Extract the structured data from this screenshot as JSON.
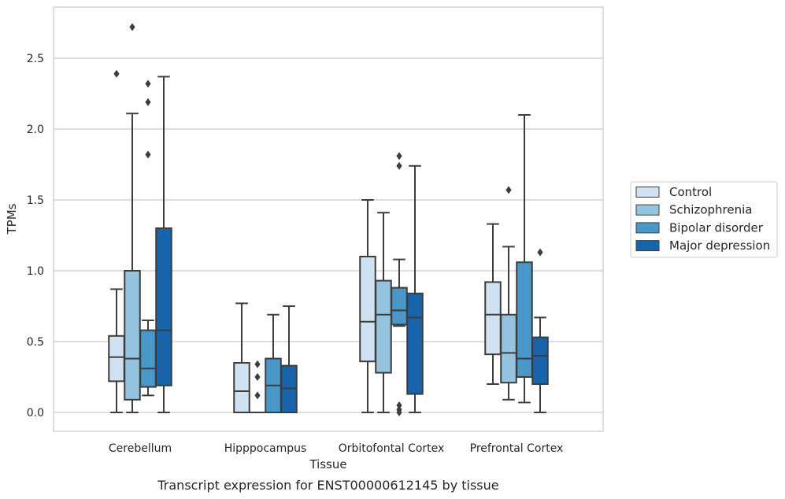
{
  "caption": "Transcript expression for ENST00000612145 by tissue",
  "chart_data": {
    "type": "box",
    "xlabel": "Tissue",
    "ylabel": "TPMs",
    "ylim": [
      -0.13,
      2.87
    ],
    "yticks": [
      0.0,
      0.5,
      1.0,
      1.5,
      2.0,
      2.5
    ],
    "ytick_labels": [
      "0.0",
      "0.5",
      "1.0",
      "1.5",
      "2.0",
      "2.5"
    ],
    "grid": true,
    "legend_position": "right",
    "categories": [
      "Cerebellum",
      "Hipppocampus",
      "Orbitofontal Cortex",
      "Prefrontal Cortex"
    ],
    "series": [
      {
        "name": "Control",
        "color": "#d0e1f2",
        "boxes": [
          {
            "whislo": 0.0,
            "q1": 0.22,
            "med": 0.39,
            "q3": 0.54,
            "whishi": 0.87,
            "fliers": [
              2.39
            ]
          },
          {
            "whislo": 0.0,
            "q1": 0.0,
            "med": 0.15,
            "q3": 0.35,
            "whishi": 0.77,
            "fliers": []
          },
          {
            "whislo": 0.0,
            "q1": 0.36,
            "med": 0.64,
            "q3": 1.1,
            "whishi": 1.5,
            "fliers": []
          },
          {
            "whislo": 0.2,
            "q1": 0.41,
            "med": 0.69,
            "q3": 0.92,
            "whishi": 1.33,
            "fliers": []
          }
        ]
      },
      {
        "name": "Schizophrenia",
        "color": "#94c4df",
        "boxes": [
          {
            "whislo": 0.0,
            "q1": 0.09,
            "med": 0.38,
            "q3": 1.0,
            "whishi": 2.11,
            "fliers": [
              2.72
            ]
          },
          {
            "whislo": 0.0,
            "q1": 0.0,
            "med": 0.0,
            "q3": 0.0,
            "whishi": 0.0,
            "fliers": [
              0.12,
              0.25,
              0.34
            ]
          },
          {
            "whislo": 0.0,
            "q1": 0.28,
            "med": 0.69,
            "q3": 0.93,
            "whishi": 1.41,
            "fliers": []
          },
          {
            "whislo": 0.09,
            "q1": 0.21,
            "med": 0.42,
            "q3": 0.69,
            "whishi": 1.17,
            "fliers": [
              1.57
            ]
          }
        ]
      },
      {
        "name": "Bipolar disorder",
        "color": "#4a98c9",
        "boxes": [
          {
            "whislo": 0.12,
            "q1": 0.18,
            "med": 0.31,
            "q3": 0.58,
            "whishi": 0.65,
            "fliers": [
              1.82,
              2.19,
              2.32
            ]
          },
          {
            "whislo": 0.0,
            "q1": 0.0,
            "med": 0.19,
            "q3": 0.38,
            "whishi": 0.69,
            "fliers": []
          },
          {
            "whislo": 0.61,
            "q1": 0.62,
            "med": 0.72,
            "q3": 0.88,
            "whishi": 1.08,
            "fliers": [
              0.0,
              0.02,
              0.05,
              1.74,
              1.81
            ]
          },
          {
            "whislo": 0.07,
            "q1": 0.25,
            "med": 0.38,
            "q3": 1.06,
            "whishi": 2.1,
            "fliers": []
          }
        ]
      },
      {
        "name": "Major depression",
        "color": "#1764ab",
        "boxes": [
          {
            "whislo": 0.0,
            "q1": 0.19,
            "med": 0.58,
            "q3": 1.3,
            "whishi": 2.37,
            "fliers": []
          },
          {
            "whislo": 0.0,
            "q1": 0.0,
            "med": 0.17,
            "q3": 0.33,
            "whishi": 0.75,
            "fliers": []
          },
          {
            "whislo": 0.0,
            "q1": 0.13,
            "med": 0.67,
            "q3": 0.84,
            "whishi": 1.74,
            "fliers": []
          },
          {
            "whislo": 0.0,
            "q1": 0.2,
            "med": 0.4,
            "q3": 0.53,
            "whishi": 0.67,
            "fliers": [
              1.13
            ]
          }
        ]
      }
    ]
  }
}
